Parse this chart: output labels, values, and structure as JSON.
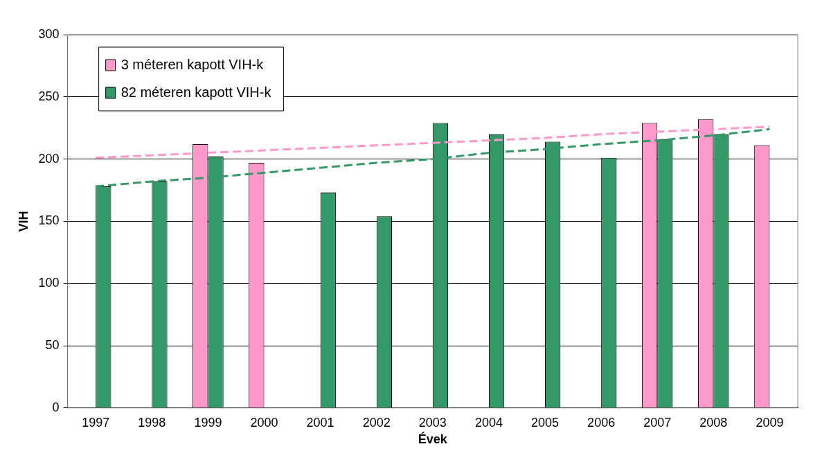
{
  "chart_data": {
    "type": "bar",
    "xlabel": "Évek",
    "ylabel": "VIH",
    "categories": [
      "1997",
      "1998",
      "1999",
      "2000",
      "2001",
      "2002",
      "2003",
      "2004",
      "2005",
      "2006",
      "2007",
      "2008",
      "2009"
    ],
    "series": [
      {
        "name": "3 méteren kapott VIH-k",
        "color": "#ff99cc",
        "values": [
          null,
          null,
          212,
          197,
          null,
          null,
          null,
          null,
          null,
          null,
          229,
          232,
          211
        ]
      },
      {
        "name": "82 méteren kapott VIH-k",
        "color": "#339966",
        "values": [
          178,
          182,
          202,
          null,
          173,
          154,
          229,
          220,
          214,
          201,
          216,
          220,
          null
        ]
      },
      {
        "type": "line",
        "color": "#ff99cc",
        "values": [
          201,
          203,
          205,
          207,
          209,
          211,
          213,
          215,
          217,
          220,
          222,
          224,
          226
        ]
      },
      {
        "type": "line",
        "color": "#339966",
        "values": [
          178,
          182,
          185,
          189,
          193,
          197,
          200,
          205,
          208,
          212,
          215,
          219,
          224
        ]
      }
    ],
    "ylim": [
      0,
      300
    ],
    "yticks": [
      0,
      50,
      100,
      150,
      200,
      250,
      300
    ],
    "grid": "y",
    "legend": "top left",
    "line_style": "dashed",
    "marker": "none"
  }
}
